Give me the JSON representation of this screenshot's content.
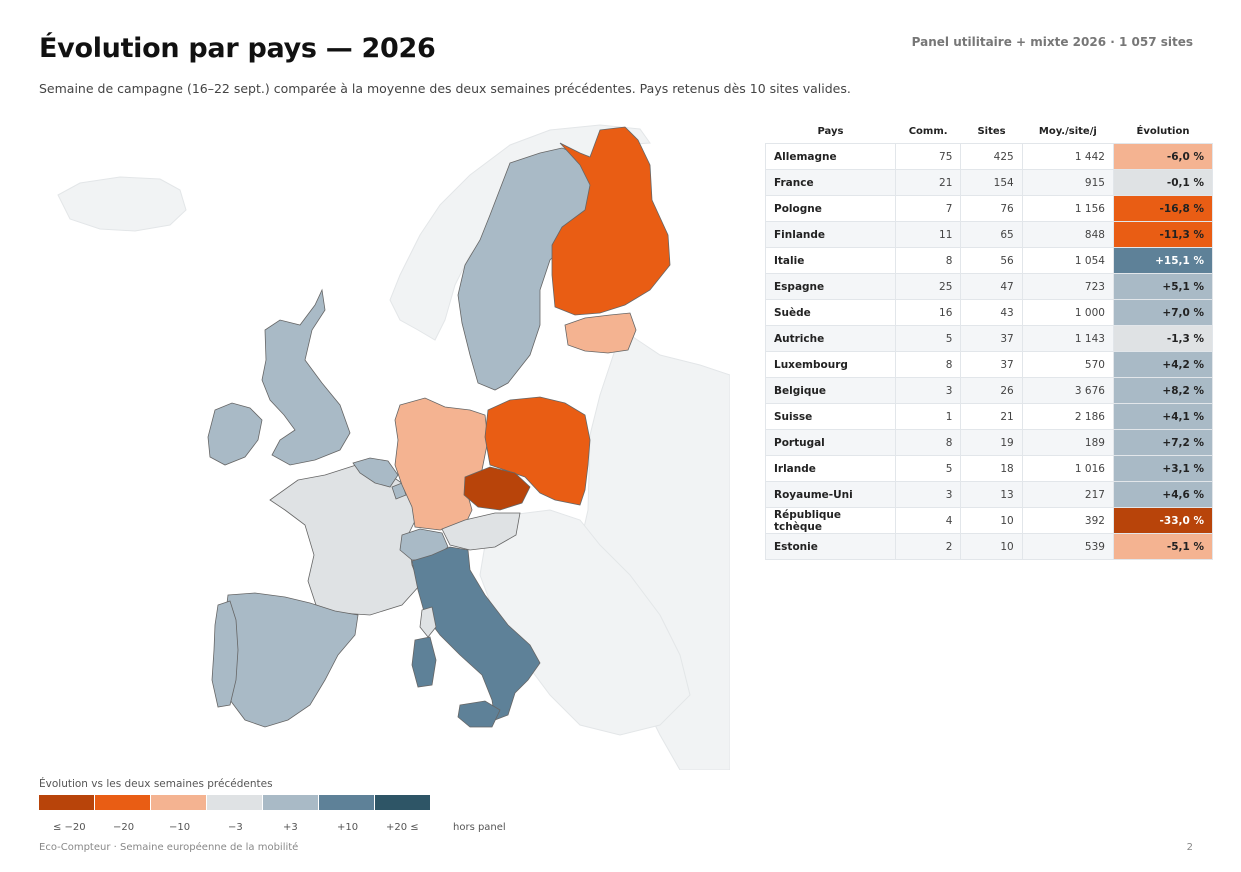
{
  "header": {
    "title": "Évolution par pays — 2026",
    "panel_info": "Panel utilitaire + mixte 2026 · 1 057 sites",
    "subtitle": "Semaine de campagne (16–22 sept.) comparée à la moyenne des deux semaines précédentes. Pays retenus dès 10 sites valides."
  },
  "table": {
    "columns": [
      "Pays",
      "Comm.",
      "Sites",
      "Moy./site/j",
      "Évolution"
    ],
    "rows": [
      {
        "pays": "Allemagne",
        "comm": "75",
        "sites": "425",
        "moy": "1 442",
        "evo": "-6,0 %",
        "color": "#f4b391",
        "text_color": "#222222"
      },
      {
        "pays": "France",
        "comm": "21",
        "sites": "154",
        "moy": "915",
        "evo": "-0,1 %",
        "color": "#dfe2e4",
        "text_color": "#222222"
      },
      {
        "pays": "Pologne",
        "comm": "7",
        "sites": "76",
        "moy": "1 156",
        "evo": "-16,8 %",
        "color": "#e95d14",
        "text_color": "#222222"
      },
      {
        "pays": "Finlande",
        "comm": "11",
        "sites": "65",
        "moy": "848",
        "evo": "-11,3 %",
        "color": "#e95d14",
        "text_color": "#222222"
      },
      {
        "pays": "Italie",
        "comm": "8",
        "sites": "56",
        "moy": "1 054",
        "evo": "+15,1 %",
        "color": "#5e8198",
        "text_color": "#ffffff"
      },
      {
        "pays": "Espagne",
        "comm": "25",
        "sites": "47",
        "moy": "723",
        "evo": "+5,1 %",
        "color": "#a9bac6",
        "text_color": "#222222"
      },
      {
        "pays": "Suède",
        "comm": "16",
        "sites": "43",
        "moy": "1 000",
        "evo": "+7,0 %",
        "color": "#a9bac6",
        "text_color": "#222222"
      },
      {
        "pays": "Autriche",
        "comm": "5",
        "sites": "37",
        "moy": "1 143",
        "evo": "-1,3 %",
        "color": "#dfe2e4",
        "text_color": "#222222"
      },
      {
        "pays": "Luxembourg",
        "comm": "8",
        "sites": "37",
        "moy": "570",
        "evo": "+4,2 %",
        "color": "#a9bac6",
        "text_color": "#222222"
      },
      {
        "pays": "Belgique",
        "comm": "3",
        "sites": "26",
        "moy": "3 676",
        "evo": "+8,2 %",
        "color": "#a9bac6",
        "text_color": "#222222"
      },
      {
        "pays": "Suisse",
        "comm": "1",
        "sites": "21",
        "moy": "2 186",
        "evo": "+4,1 %",
        "color": "#a9bac6",
        "text_color": "#222222"
      },
      {
        "pays": "Portugal",
        "comm": "8",
        "sites": "19",
        "moy": "189",
        "evo": "+7,2 %",
        "color": "#a9bac6",
        "text_color": "#222222"
      },
      {
        "pays": "Irlande",
        "comm": "5",
        "sites": "18",
        "moy": "1 016",
        "evo": "+3,1 %",
        "color": "#a9bac6",
        "text_color": "#222222"
      },
      {
        "pays": "Royaume-Uni",
        "comm": "3",
        "sites": "13",
        "moy": "217",
        "evo": "+4,6 %",
        "color": "#a9bac6",
        "text_color": "#222222"
      },
      {
        "pays": "République tchèque",
        "comm": "4",
        "sites": "10",
        "moy": "392",
        "evo": "-33,0 %",
        "color": "#b8440a",
        "text_color": "#ffffff"
      },
      {
        "pays": "Estonie",
        "comm": "2",
        "sites": "10",
        "moy": "539",
        "evo": "-5,1 %",
        "color": "#f4b391",
        "text_color": "#222222"
      }
    ]
  },
  "legend": {
    "title": "Évolution vs les deux semaines précédentes",
    "swatches": [
      "#b8440a",
      "#e95d14",
      "#f4b391",
      "#dfe2e4",
      "#a9bac6",
      "#5e8198",
      "#2e5566"
    ],
    "labels": [
      "≤ −20",
      "−20",
      "−10",
      "−3",
      "+3",
      "+10",
      "+20 ≤",
      "hors panel"
    ],
    "no_data_color": "#f1f3f4"
  },
  "footer": {
    "left": "Eco-Compteur · Semaine européenne de la mobilité",
    "page": "2"
  }
}
